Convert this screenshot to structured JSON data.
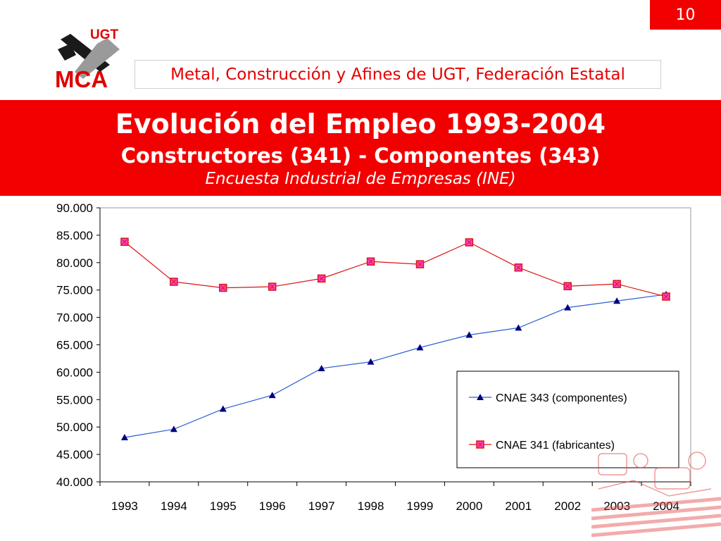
{
  "slide": {
    "page_number": "10",
    "organization": "Metal, Construcción y Afines de UGT, Federación Estatal",
    "logo": {
      "top_text": "UGT",
      "bottom_text": "MCA"
    },
    "title": "Evolución del Empleo 1993-2004",
    "subtitle": "Constructores (341) - Componentes (343)",
    "source": "Encuesta Industrial de Empresas (INE)"
  },
  "colors": {
    "brand_red": "#f20000",
    "series_componentes": "#2e5fd0",
    "series_fabricantes": "#d81414",
    "marker_fill_fabricantes": "#ff44cc",
    "marker_fill_componentes": "#000080"
  },
  "chart_data": {
    "type": "line",
    "x": [
      "1993",
      "1994",
      "1995",
      "1996",
      "1997",
      "1998",
      "1999",
      "2000",
      "2001",
      "2002",
      "2003",
      "2004"
    ],
    "series": [
      {
        "name": "CNAE 343 (componentes)",
        "marker": "triangle",
        "values": [
          48100,
          49600,
          53300,
          55800,
          60700,
          61900,
          64500,
          66800,
          68100,
          71800,
          73000,
          74200
        ]
      },
      {
        "name": "CNAE 341 (fabricantes)",
        "marker": "square",
        "values": [
          83800,
          76500,
          75400,
          75600,
          77100,
          80200,
          79700,
          83700,
          79100,
          75700,
          76100,
          73800
        ]
      }
    ],
    "ylim": [
      40000,
      90000
    ],
    "yticks": [
      "40.000",
      "45.000",
      "50.000",
      "55.000",
      "60.000",
      "65.000",
      "70.000",
      "75.000",
      "80.000",
      "85.000",
      "90.000"
    ],
    "grid": false,
    "legend_position": "bottom-right"
  }
}
